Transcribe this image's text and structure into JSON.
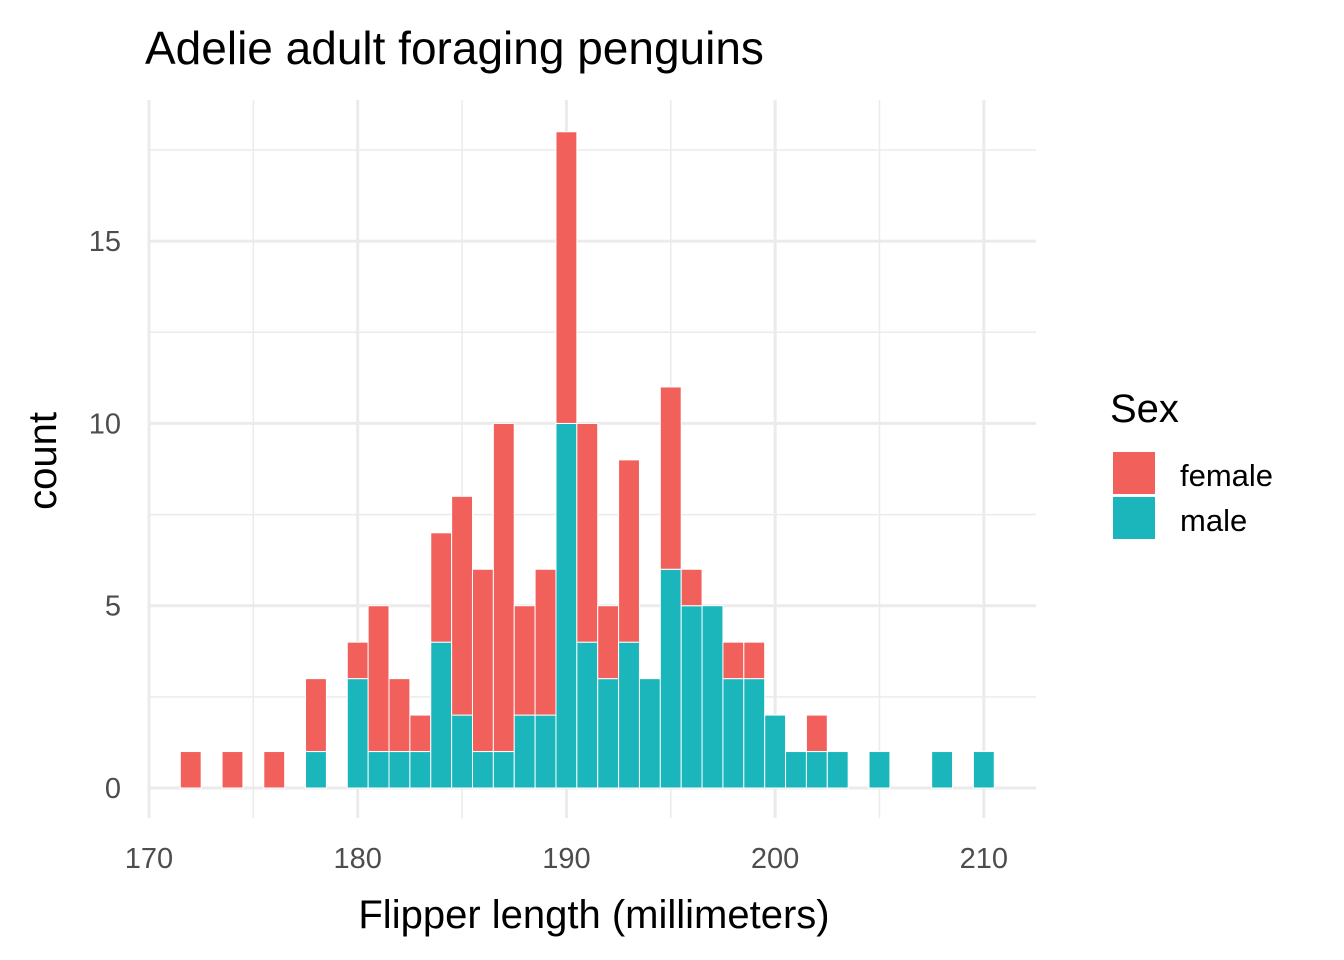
{
  "chart_data": {
    "type": "bar",
    "title": "Adelie adult foraging penguins",
    "xlabel": "Flipper length (millimeters)",
    "ylabel": "count",
    "xlim": [
      170,
      210
    ],
    "ylim": [
      0,
      18
    ],
    "x_ticks": [
      170,
      180,
      190,
      200,
      210
    ],
    "y_ticks": [
      0,
      5,
      10,
      15
    ],
    "grid": true,
    "stacked": true,
    "bin_width": 1,
    "legend": {
      "title": "Sex",
      "position": "right"
    },
    "x": [
      172,
      174,
      176,
      178,
      180,
      181,
      182,
      183,
      184,
      185,
      186,
      187,
      188,
      189,
      190,
      191,
      192,
      193,
      194,
      195,
      196,
      197,
      198,
      199,
      200,
      201,
      202,
      203,
      205,
      208,
      210
    ],
    "series": [
      {
        "name": "male",
        "color": "#1ab6bb",
        "values": [
          0,
          0,
          0,
          1,
          3,
          1,
          1,
          1,
          4,
          2,
          1,
          1,
          2,
          2,
          10,
          4,
          3,
          4,
          3,
          6,
          5,
          5,
          3,
          3,
          2,
          1,
          1,
          1,
          1,
          1,
          1
        ]
      },
      {
        "name": "female",
        "color": "#f2605c",
        "values": [
          1,
          1,
          1,
          2,
          1,
          4,
          2,
          1,
          3,
          6,
          5,
          9,
          3,
          4,
          8,
          6,
          2,
          5,
          0,
          5,
          1,
          0,
          1,
          1,
          0,
          0,
          1,
          0,
          0,
          0,
          0
        ]
      }
    ]
  }
}
